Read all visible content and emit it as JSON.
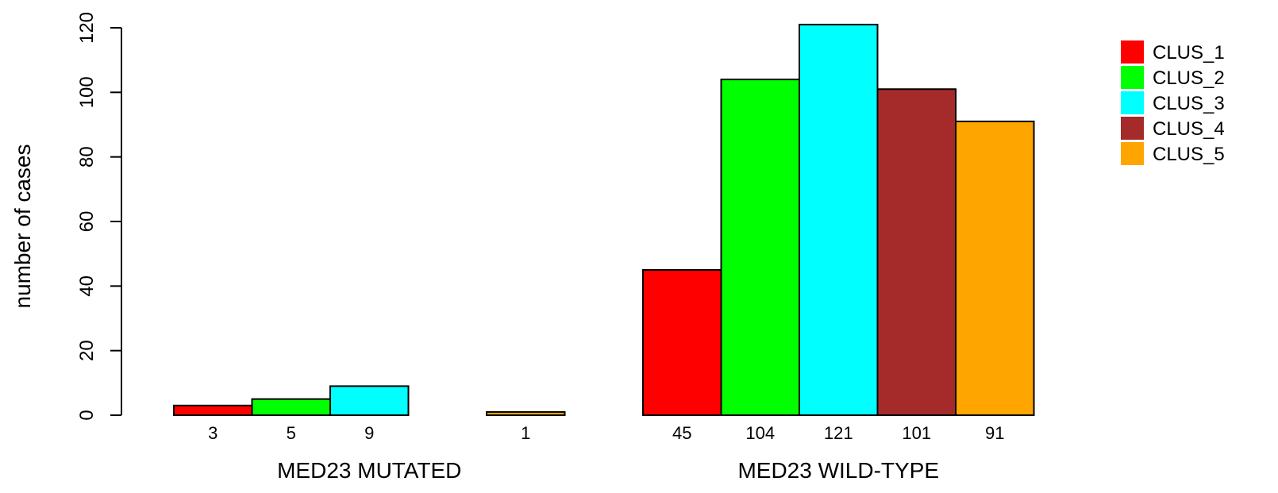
{
  "chart_data": {
    "type": "bar",
    "ylabel": "number of cases",
    "ylim": [
      0,
      120
    ],
    "yticks": [
      0,
      20,
      40,
      60,
      80,
      100,
      120
    ],
    "series_names": [
      "CLUS_1",
      "CLUS_2",
      "CLUS_3",
      "CLUS_4",
      "CLUS_5"
    ],
    "colors": [
      "#ff0000",
      "#00ff00",
      "#00ffff",
      "#a52a2a",
      "#ffa500"
    ],
    "groups": [
      {
        "label": "MED23 MUTATED",
        "values": [
          3,
          5,
          9,
          0,
          1
        ],
        "value_labels": [
          "3",
          "5",
          "9",
          "",
          "1"
        ]
      },
      {
        "label": "MED23 WILD-TYPE",
        "values": [
          45,
          104,
          121,
          101,
          91
        ],
        "value_labels": [
          "45",
          "104",
          "121",
          "101",
          "91"
        ]
      }
    ],
    "legend_position": "top-right"
  }
}
